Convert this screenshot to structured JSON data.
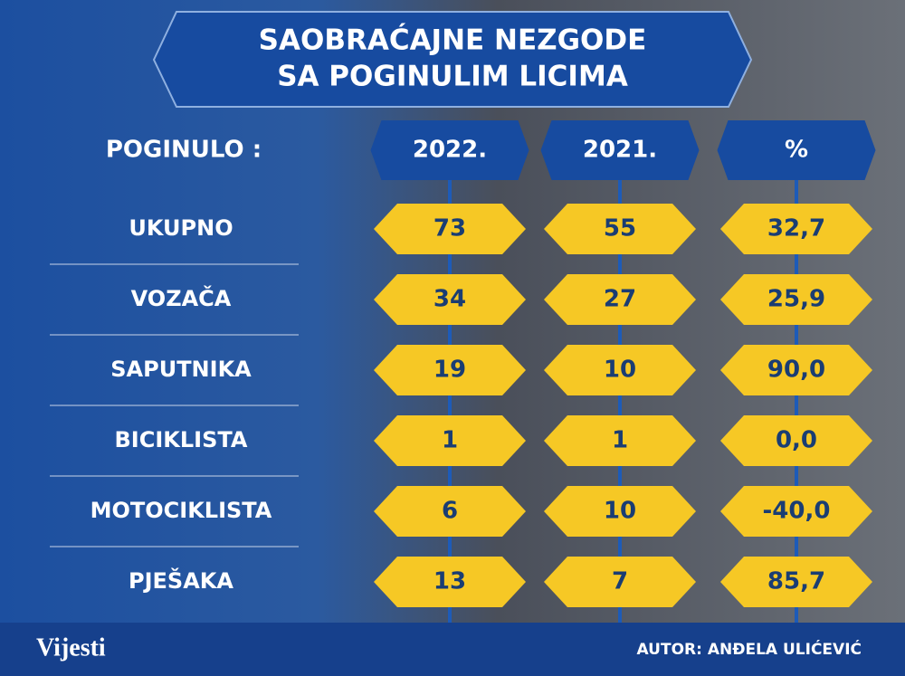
{
  "title": [
    "SAOBRAĆAJNE NEZGODE",
    "SA POGINULIM LICIMA"
  ],
  "table": {
    "header": [
      "POGINULO :",
      "2022.",
      "2021.",
      "%"
    ],
    "rows": [
      [
        "UKUPNO",
        "73",
        "55",
        "32,7"
      ],
      [
        "VOZAČA",
        "34",
        "27",
        "25,9"
      ],
      [
        "SAPUTNIKA",
        "19",
        "10",
        "90,0"
      ],
      [
        "BICIKLISTA",
        "1",
        "1",
        "0,0"
      ],
      [
        "MOTOCIKLISTA",
        "6",
        "10",
        "-40,0"
      ],
      [
        "PJEŠAKA",
        "13",
        "7",
        "85,7"
      ]
    ]
  },
  "footer": {
    "logo": "Vijesti",
    "author": "AUTOR: ANĐELA ULIĆEVIĆ"
  }
}
